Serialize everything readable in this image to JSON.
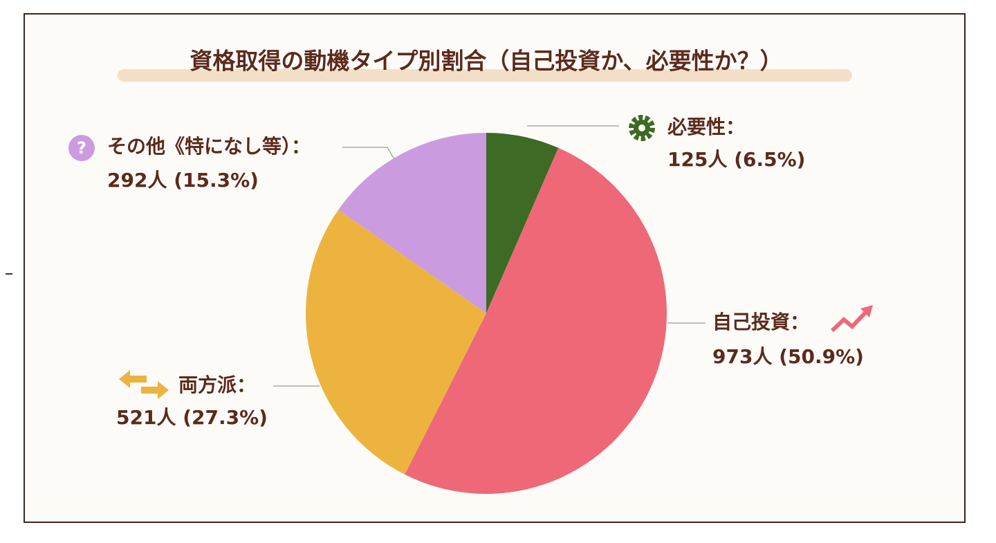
{
  "chart_data": {
    "type": "pie",
    "title": "資格取得の動機タイプ別割合（自己投資か、必要性か？）",
    "categories": [
      "必要性：",
      "自己投資：",
      "両方派：",
      "その他《特になし等）："
    ],
    "values": [
      125,
      973,
      521,
      292
    ],
    "value_labels": [
      "125人 (6.5%)",
      "973人 (50.9%)",
      "521人 (27.3%)",
      "292人 (15.3%)"
    ],
    "colors": [
      "#3d6a24",
      "#ee6878",
      "#ecb43f",
      "#cb9be0"
    ]
  }
}
